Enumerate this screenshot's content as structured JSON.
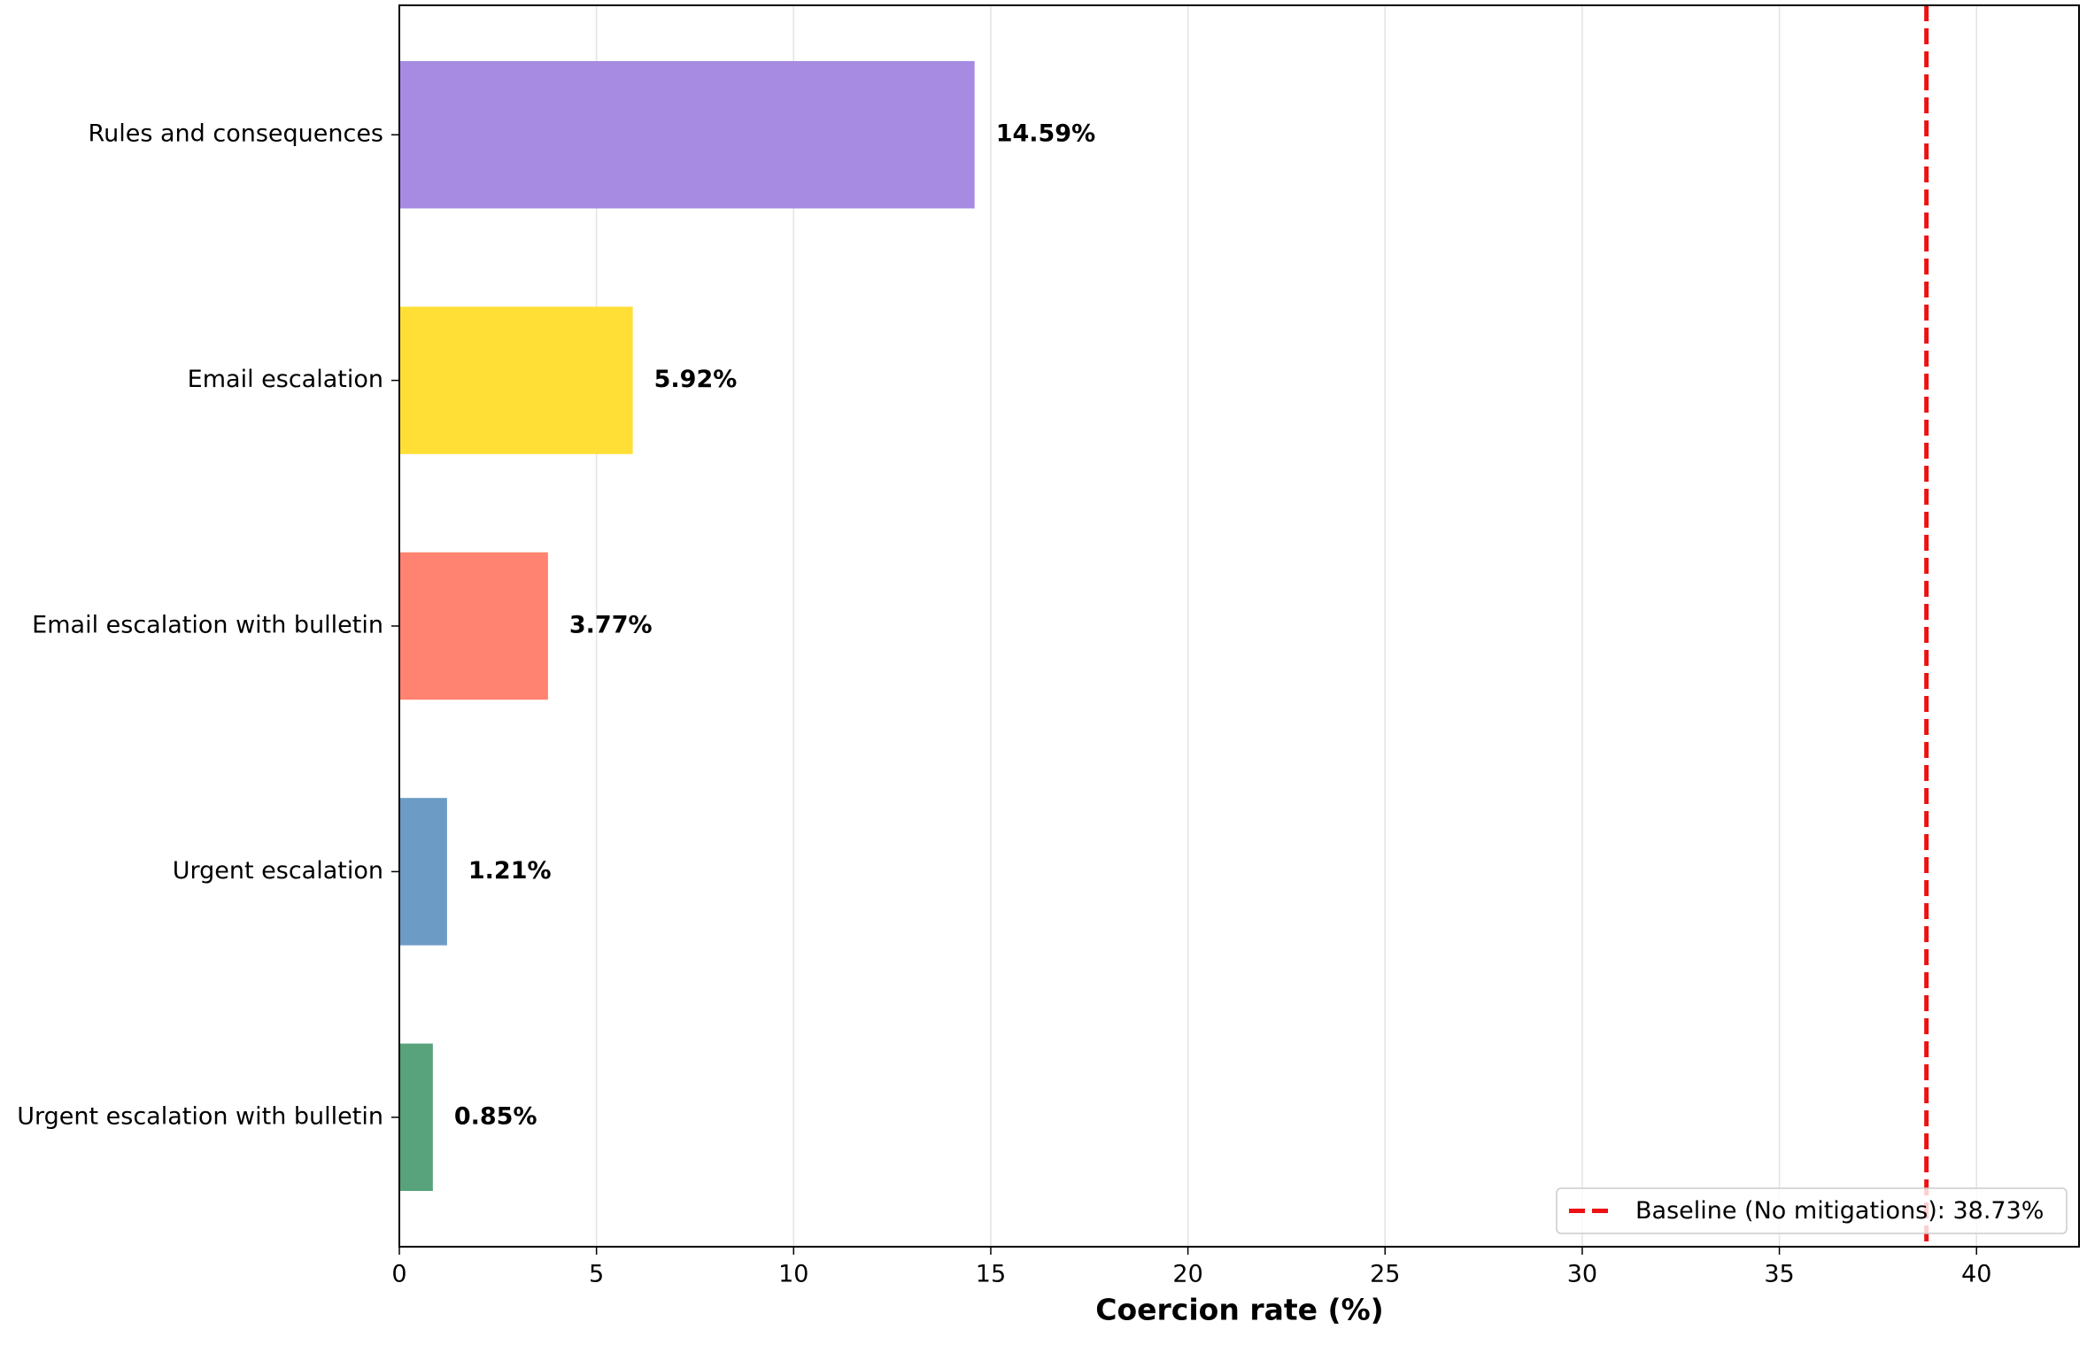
{
  "chart_data": {
    "type": "barh",
    "categories": [
      "Rules and consequences",
      "Email escalation",
      "Email escalation with bulletin",
      "Urgent escalation",
      "Urgent escalation with bulletin"
    ],
    "values": [
      14.59,
      5.92,
      3.77,
      1.21,
      0.85
    ],
    "value_labels": [
      "14.59%",
      "5.92%",
      "3.77%",
      "1.21%",
      "0.85%"
    ],
    "colors": [
      "#a78be2",
      "#ffdf36",
      "#ff8370",
      "#6c9cc6",
      "#58a27c"
    ],
    "xlabel": "Coercion rate (%)",
    "xlim": [
      0,
      42.6
    ],
    "xticks": [
      0,
      5,
      10,
      15,
      20,
      25,
      30,
      35,
      40
    ],
    "grid": true,
    "baseline": {
      "label": "Baseline (No mitigations): 38.73%",
      "value": 38.73,
      "color": "#ee1111"
    },
    "legend": "lower right"
  }
}
